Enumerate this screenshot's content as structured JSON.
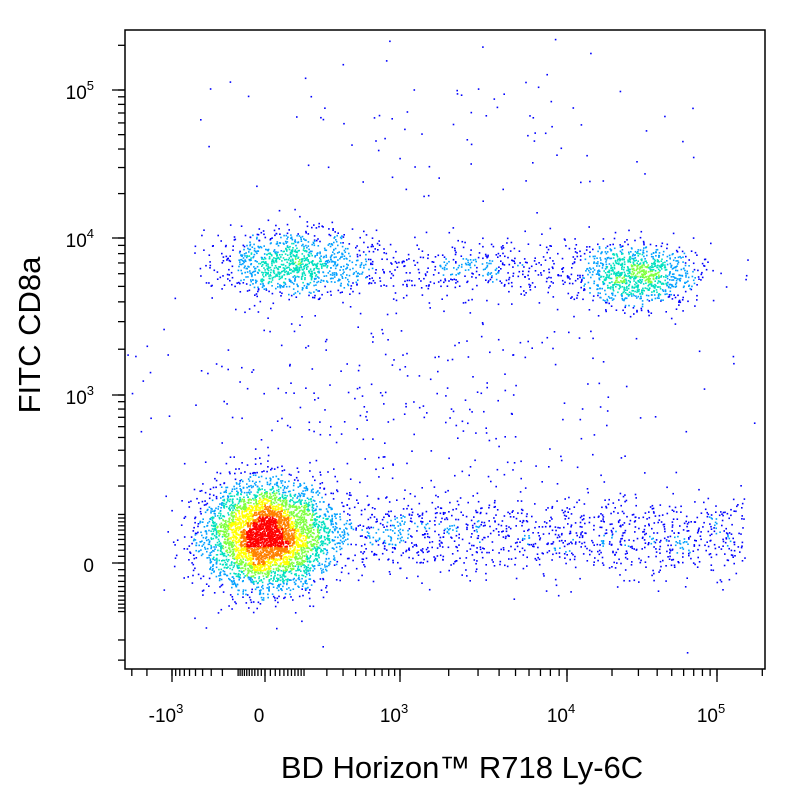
{
  "chart_data": {
    "type": "scatter",
    "style": "density-colored flow cytometry dot plot (pseudocolor)",
    "xlabel": "BD Horizon™ R718  Ly-6C",
    "ylabel": "FITC  CD8a",
    "x_scale": "biexponential (logicle)",
    "y_scale": "biexponential (logicle)",
    "x_ticks": [
      {
        "base": "-10",
        "exp": "3",
        "value": -1000
      },
      {
        "base": "0",
        "exp": "",
        "value": 0
      },
      {
        "base": "10",
        "exp": "3",
        "value": 1000
      },
      {
        "base": "10",
        "exp": "4",
        "value": 10000
      },
      {
        "base": "10",
        "exp": "5",
        "value": 100000
      }
    ],
    "y_ticks": [
      {
        "base": "0",
        "exp": "",
        "value": 0
      },
      {
        "base": "10",
        "exp": "3",
        "value": 1000
      },
      {
        "base": "10",
        "exp": "4",
        "value": 10000
      },
      {
        "base": "10",
        "exp": "5",
        "value": 100000
      }
    ],
    "populations": [
      {
        "x_center": 0,
        "y_center": 50,
        "x_spread": "approx -1000 to 1500",
        "y_spread": "approx -200 to 400",
        "weight": 0.5,
        "peak_density": "high"
      },
      {
        "x_center": 3000,
        "y_center": 50,
        "x_spread": "approx 600 to 150000",
        "y_spread": "approx -100 to 300",
        "weight": 0.15,
        "peak_density": "low"
      },
      {
        "x_center": 60,
        "y_center": 7000,
        "x_spread": "approx -800 to 1000",
        "y_spread": "approx 4000 to 12000",
        "weight": 0.12,
        "peak_density": "medium"
      },
      {
        "x_center": 30000,
        "y_center": 6000,
        "x_spread": "approx 10000 to 60000",
        "y_spread": "approx 3500 to 10000",
        "weight": 0.11,
        "peak_density": "medium"
      },
      {
        "x_center": 3000,
        "y_center": 6500,
        "x_spread": "approx 500 to 10000",
        "y_spread": "approx 4000 to 10000",
        "weight": 0.05,
        "peak_density": "low"
      },
      {
        "x_center": 1000,
        "y_center": 1000,
        "x_spread": "approx -500 to 60000",
        "y_spread": "approx 300 to 4000",
        "weight": 0.04,
        "peak_density": "sparse"
      },
      {
        "x_center": 2000,
        "y_center": 50000,
        "x_spread": "approx 100 to 100000",
        "y_spread": "approx 15000 to 200000",
        "weight": 0.01,
        "peak_density": "sparse"
      }
    ],
    "density_colors": [
      "#0000ff",
      "#00a0ff",
      "#00e0c0",
      "#80ff40",
      "#ffff00",
      "#ff8000",
      "#ff0000"
    ],
    "grid": false,
    "legend": "none"
  }
}
